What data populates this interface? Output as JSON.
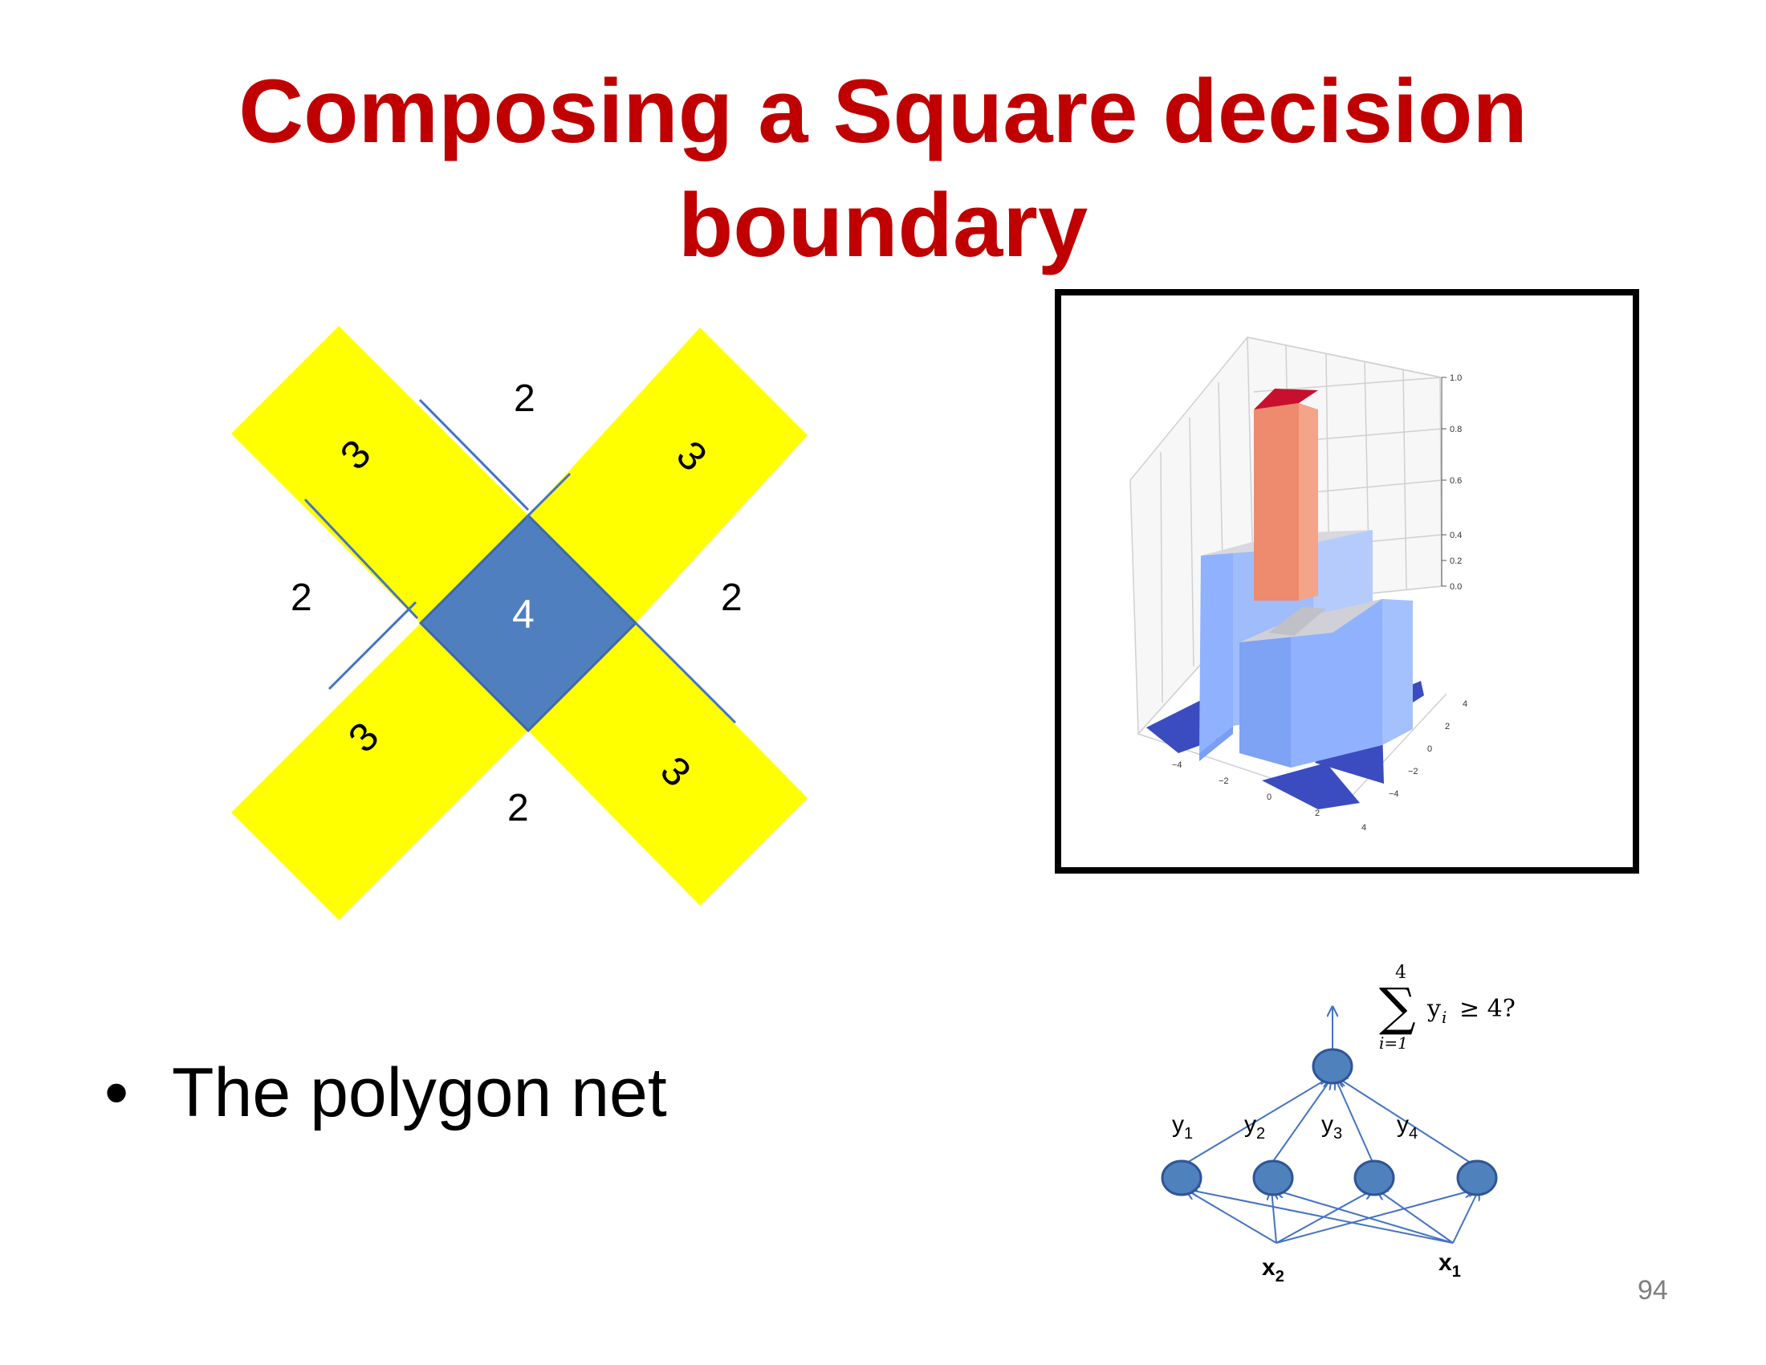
{
  "slide": {
    "title_line1": "Composing a Square decision",
    "title_line2": "boundary",
    "bullet_text": "The polygon net",
    "page_number": "94"
  },
  "regions": {
    "center_label": "4",
    "arm_labels": [
      "3",
      "3",
      "3",
      "3"
    ],
    "outer_labels": {
      "top": "2",
      "left": "2",
      "right": "2",
      "bottom": "2"
    },
    "colors": {
      "arm": "#ffff00",
      "center": "#4f7fbf",
      "line": "#4472c4"
    }
  },
  "plot3d": {
    "z_ticks": [
      "0.0",
      "0.2",
      "0.4",
      "0.6",
      "0.8",
      "1.0"
    ],
    "x_ticks": [
      "−4",
      "−2",
      "0",
      "2",
      "4"
    ],
    "y_ticks": [
      "4",
      "2",
      "0",
      "−2",
      "−4"
    ],
    "colors": {
      "low": "#3b4cc0",
      "mid": "#8fb1fe",
      "top": "#c0c0c8",
      "peak_side": "#ee8a6d",
      "peak_top": "#c8102e"
    }
  },
  "network": {
    "sum_formula": {
      "upper": "4",
      "sigma": "∑",
      "body": "y",
      "sub": "i",
      "rel": "≥ 4?",
      "lower": "i=1"
    },
    "hidden_labels": [
      {
        "base": "y",
        "sub": "1"
      },
      {
        "base": "y",
        "sub": "2"
      },
      {
        "base": "y",
        "sub": "3"
      },
      {
        "base": "y",
        "sub": "4"
      }
    ],
    "inputs": [
      {
        "base": "x",
        "sub": "2"
      },
      {
        "base": "x",
        "sub": "1"
      }
    ],
    "colors": {
      "node": "#4f81bd",
      "edge": "#4472c4"
    }
  }
}
